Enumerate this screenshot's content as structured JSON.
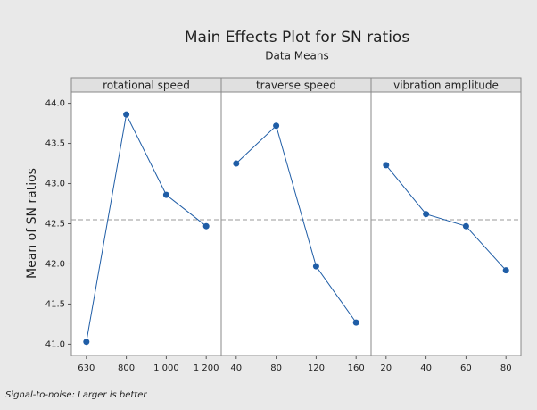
{
  "chart_data": {
    "type": "line",
    "title": "Main Effects Plot for SN ratios",
    "subtitle": "Data Means",
    "y_label": "Mean of SN ratios",
    "footnote": "Signal-to-noise: Larger is better",
    "color": "#1f5da6",
    "reference_line": 42.55,
    "ylim": [
      40.86,
      44.14
    ],
    "yticks": [
      {
        "value": 41,
        "label": "41.0"
      },
      41.5,
      {
        "value": 42,
        "label": "42.0"
      },
      42.5,
      {
        "value": 43,
        "label": "43.0"
      },
      43.5,
      {
        "value": 44,
        "label": "44.0"
      }
    ],
    "panels": [
      {
        "name": "rotational speed",
        "categories": [
          "630",
          "800",
          "1 000",
          "1 200"
        ],
        "values": [
          41.03,
          43.86,
          42.86,
          42.47
        ]
      },
      {
        "name": "traverse speed",
        "categories": [
          "40",
          "80",
          "120",
          "160"
        ],
        "values": [
          43.25,
          43.72,
          41.97,
          41.27
        ]
      },
      {
        "name": "vibration amplitude",
        "categories": [
          "20",
          "40",
          "60",
          "80"
        ],
        "values": [
          43.23,
          42.62,
          42.47,
          41.92
        ]
      }
    ]
  }
}
